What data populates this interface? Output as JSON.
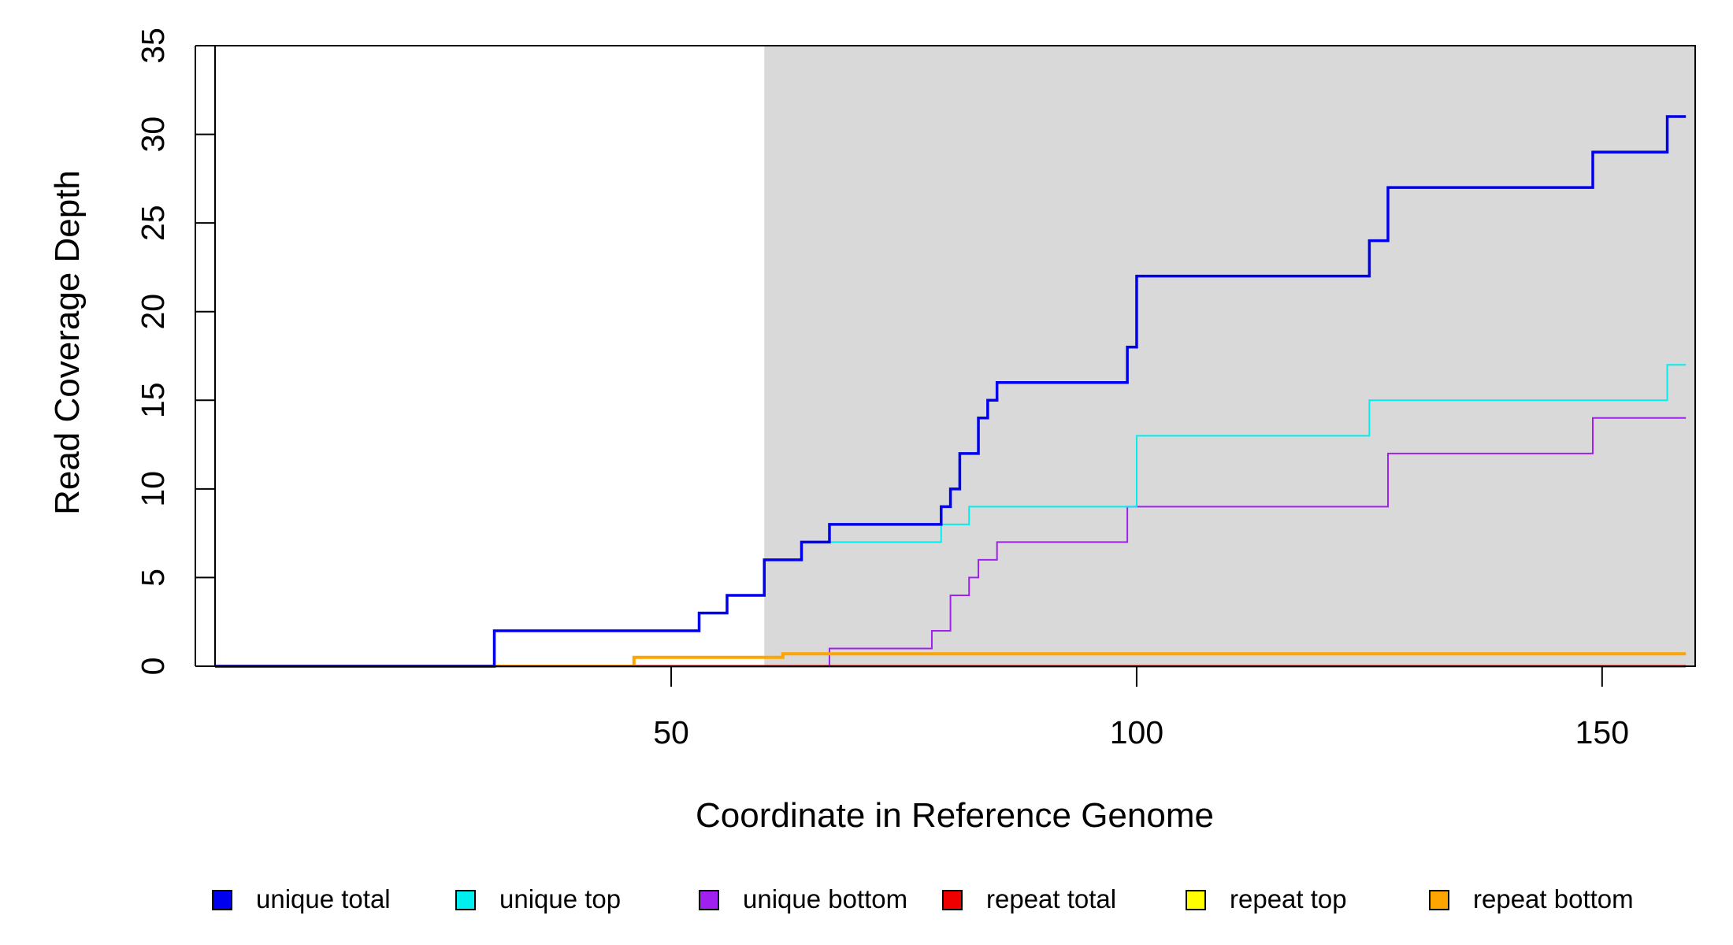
{
  "chart_data": {
    "type": "line",
    "title": "",
    "xlabel": "Coordinate in Reference Genome",
    "ylabel": "Read Coverage Depth",
    "xlim": [
      1,
      160
    ],
    "ylim": [
      0,
      35
    ],
    "x_ticks": [
      50,
      100,
      150
    ],
    "y_ticks": [
      0,
      5,
      10,
      15,
      20,
      25,
      30,
      35
    ],
    "shaded_region": {
      "x_start": 60,
      "x_end": 160,
      "color": "#d9d9d9"
    },
    "grid": false,
    "legend_position": "bottom",
    "legend": [
      {
        "name": "unique total",
        "color": "#0000ee"
      },
      {
        "name": "unique top",
        "color": "#00eeee"
      },
      {
        "name": "unique bottom",
        "color": "#a020f0"
      },
      {
        "name": "repeat total",
        "color": "#ee0000"
      },
      {
        "name": "repeat top",
        "color": "#ffff00"
      },
      {
        "name": "repeat bottom",
        "color": "#ffa500"
      }
    ],
    "series": [
      {
        "name": "unique total",
        "color": "#0000ee",
        "x": [
          1,
          31,
          53,
          56,
          60,
          64,
          67,
          79,
          80,
          81,
          83,
          84,
          85,
          99,
          100,
          125,
          127,
          149,
          157,
          159
        ],
        "values": [
          0,
          2,
          3,
          4,
          6,
          7,
          8,
          9,
          10,
          12,
          14,
          15,
          16,
          18,
          22,
          24,
          27,
          29,
          31,
          31
        ]
      },
      {
        "name": "unique top",
        "color": "#00eeee",
        "x": [
          1,
          31,
          53,
          56,
          60,
          64,
          79,
          82,
          100,
          125,
          157,
          159
        ],
        "values": [
          0,
          2,
          3,
          4,
          6,
          7,
          8,
          9,
          13,
          15,
          17,
          17
        ]
      },
      {
        "name": "unique bottom",
        "color": "#a020f0",
        "x": [
          1,
          67,
          78,
          80,
          82,
          83,
          85,
          99,
          127,
          149,
          159
        ],
        "values": [
          0,
          1,
          2,
          4,
          5,
          6,
          7,
          9,
          12,
          14,
          14
        ]
      },
      {
        "name": "repeat total",
        "color": "#ee0000",
        "x": [
          1,
          159
        ],
        "values": [
          0,
          0
        ]
      },
      {
        "name": "repeat bottom",
        "color": "#ffa500",
        "x": [
          1,
          46,
          62,
          159
        ],
        "values": [
          0,
          0.5,
          0.7,
          0.7
        ]
      }
    ]
  }
}
